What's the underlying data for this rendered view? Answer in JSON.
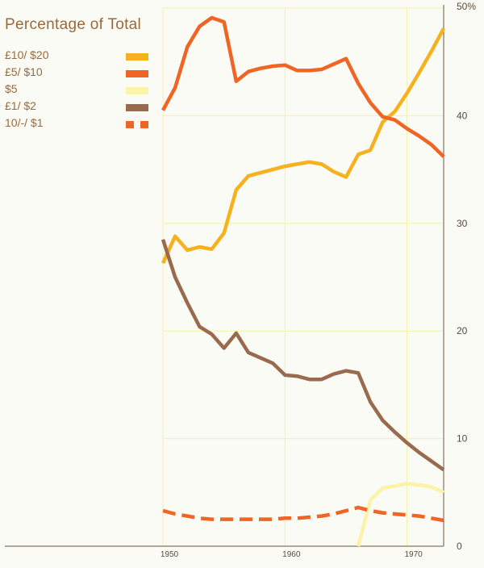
{
  "chart_data": {
    "type": "line",
    "title": "Percentage of Total",
    "xlabel": "",
    "ylabel": "",
    "xlim": [
      1950,
      1973
    ],
    "ylim": [
      0,
      50
    ],
    "x_ticks": [
      "1950",
      "1960",
      "1970"
    ],
    "y_ticks": [
      "0",
      "10",
      "20",
      "30",
      "40",
      "50%"
    ],
    "grid": true,
    "legend_position": "top-left",
    "series": [
      {
        "name": "£10/ $20",
        "color": "#f5b21e",
        "style": "solid",
        "x": [
          1950,
          1951,
          1952,
          1953,
          1954,
          1955,
          1956,
          1957,
          1958,
          1959,
          1960,
          1961,
          1962,
          1963,
          1964,
          1965,
          1966,
          1967,
          1968,
          1969,
          1970,
          1971,
          1972,
          1973
        ],
        "values": [
          26.3,
          28.8,
          27.5,
          27.8,
          27.6,
          29.1,
          33.1,
          34.4,
          34.7,
          35.0,
          35.3,
          35.5,
          35.7,
          35.5,
          34.8,
          34.3,
          36.4,
          36.8,
          39.4,
          40.4,
          42.1,
          44.0,
          46.0,
          48.1
        ]
      },
      {
        "name": "£5/ $10",
        "color": "#f06424",
        "style": "solid",
        "x": [
          1950,
          1951,
          1952,
          1953,
          1954,
          1955,
          1956,
          1957,
          1958,
          1959,
          1960,
          1961,
          1962,
          1963,
          1964,
          1965,
          1966,
          1967,
          1968,
          1969,
          1970,
          1971,
          1972,
          1973
        ],
        "values": [
          40.5,
          42.6,
          46.4,
          48.3,
          49.1,
          48.7,
          43.2,
          44.1,
          44.4,
          44.6,
          44.7,
          44.2,
          44.2,
          44.3,
          44.8,
          45.3,
          43.0,
          41.2,
          39.9,
          39.6,
          38.8,
          38.1,
          37.3,
          36.2
        ]
      },
      {
        "name": "$5",
        "color": "#fbf3a8",
        "style": "solid",
        "x": [
          1966,
          1967,
          1968,
          1969,
          1970,
          1971,
          1972,
          1973
        ],
        "values": [
          0.0,
          4.3,
          5.4,
          5.6,
          5.8,
          5.7,
          5.5,
          5.0
        ]
      },
      {
        "name": "£1/ $2",
        "color": "#9a6a4e",
        "style": "solid",
        "x": [
          1950,
          1951,
          1952,
          1953,
          1954,
          1955,
          1956,
          1957,
          1958,
          1959,
          1960,
          1961,
          1962,
          1963,
          1964,
          1965,
          1966,
          1967,
          1968,
          1969,
          1970,
          1971,
          1972,
          1973
        ],
        "values": [
          28.5,
          25.0,
          22.6,
          20.4,
          19.7,
          18.4,
          19.8,
          18.0,
          17.5,
          17.0,
          15.9,
          15.8,
          15.5,
          15.5,
          16.0,
          16.3,
          16.1,
          13.4,
          11.7,
          10.6,
          9.6,
          8.7,
          7.9,
          7.1
        ]
      },
      {
        "name": "10/-/ $1",
        "color": "#f06424",
        "style": "dashed",
        "x": [
          1950,
          1951,
          1952,
          1953,
          1954,
          1955,
          1956,
          1957,
          1958,
          1959,
          1960,
          1961,
          1962,
          1963,
          1964,
          1965,
          1966,
          1967,
          1968,
          1969,
          1970,
          1971,
          1972,
          1973
        ],
        "values": [
          3.3,
          3.0,
          2.8,
          2.6,
          2.5,
          2.5,
          2.5,
          2.5,
          2.5,
          2.5,
          2.6,
          2.6,
          2.7,
          2.8,
          3.0,
          3.3,
          3.6,
          3.3,
          3.1,
          3.0,
          2.9,
          2.8,
          2.6,
          2.4
        ]
      }
    ]
  }
}
